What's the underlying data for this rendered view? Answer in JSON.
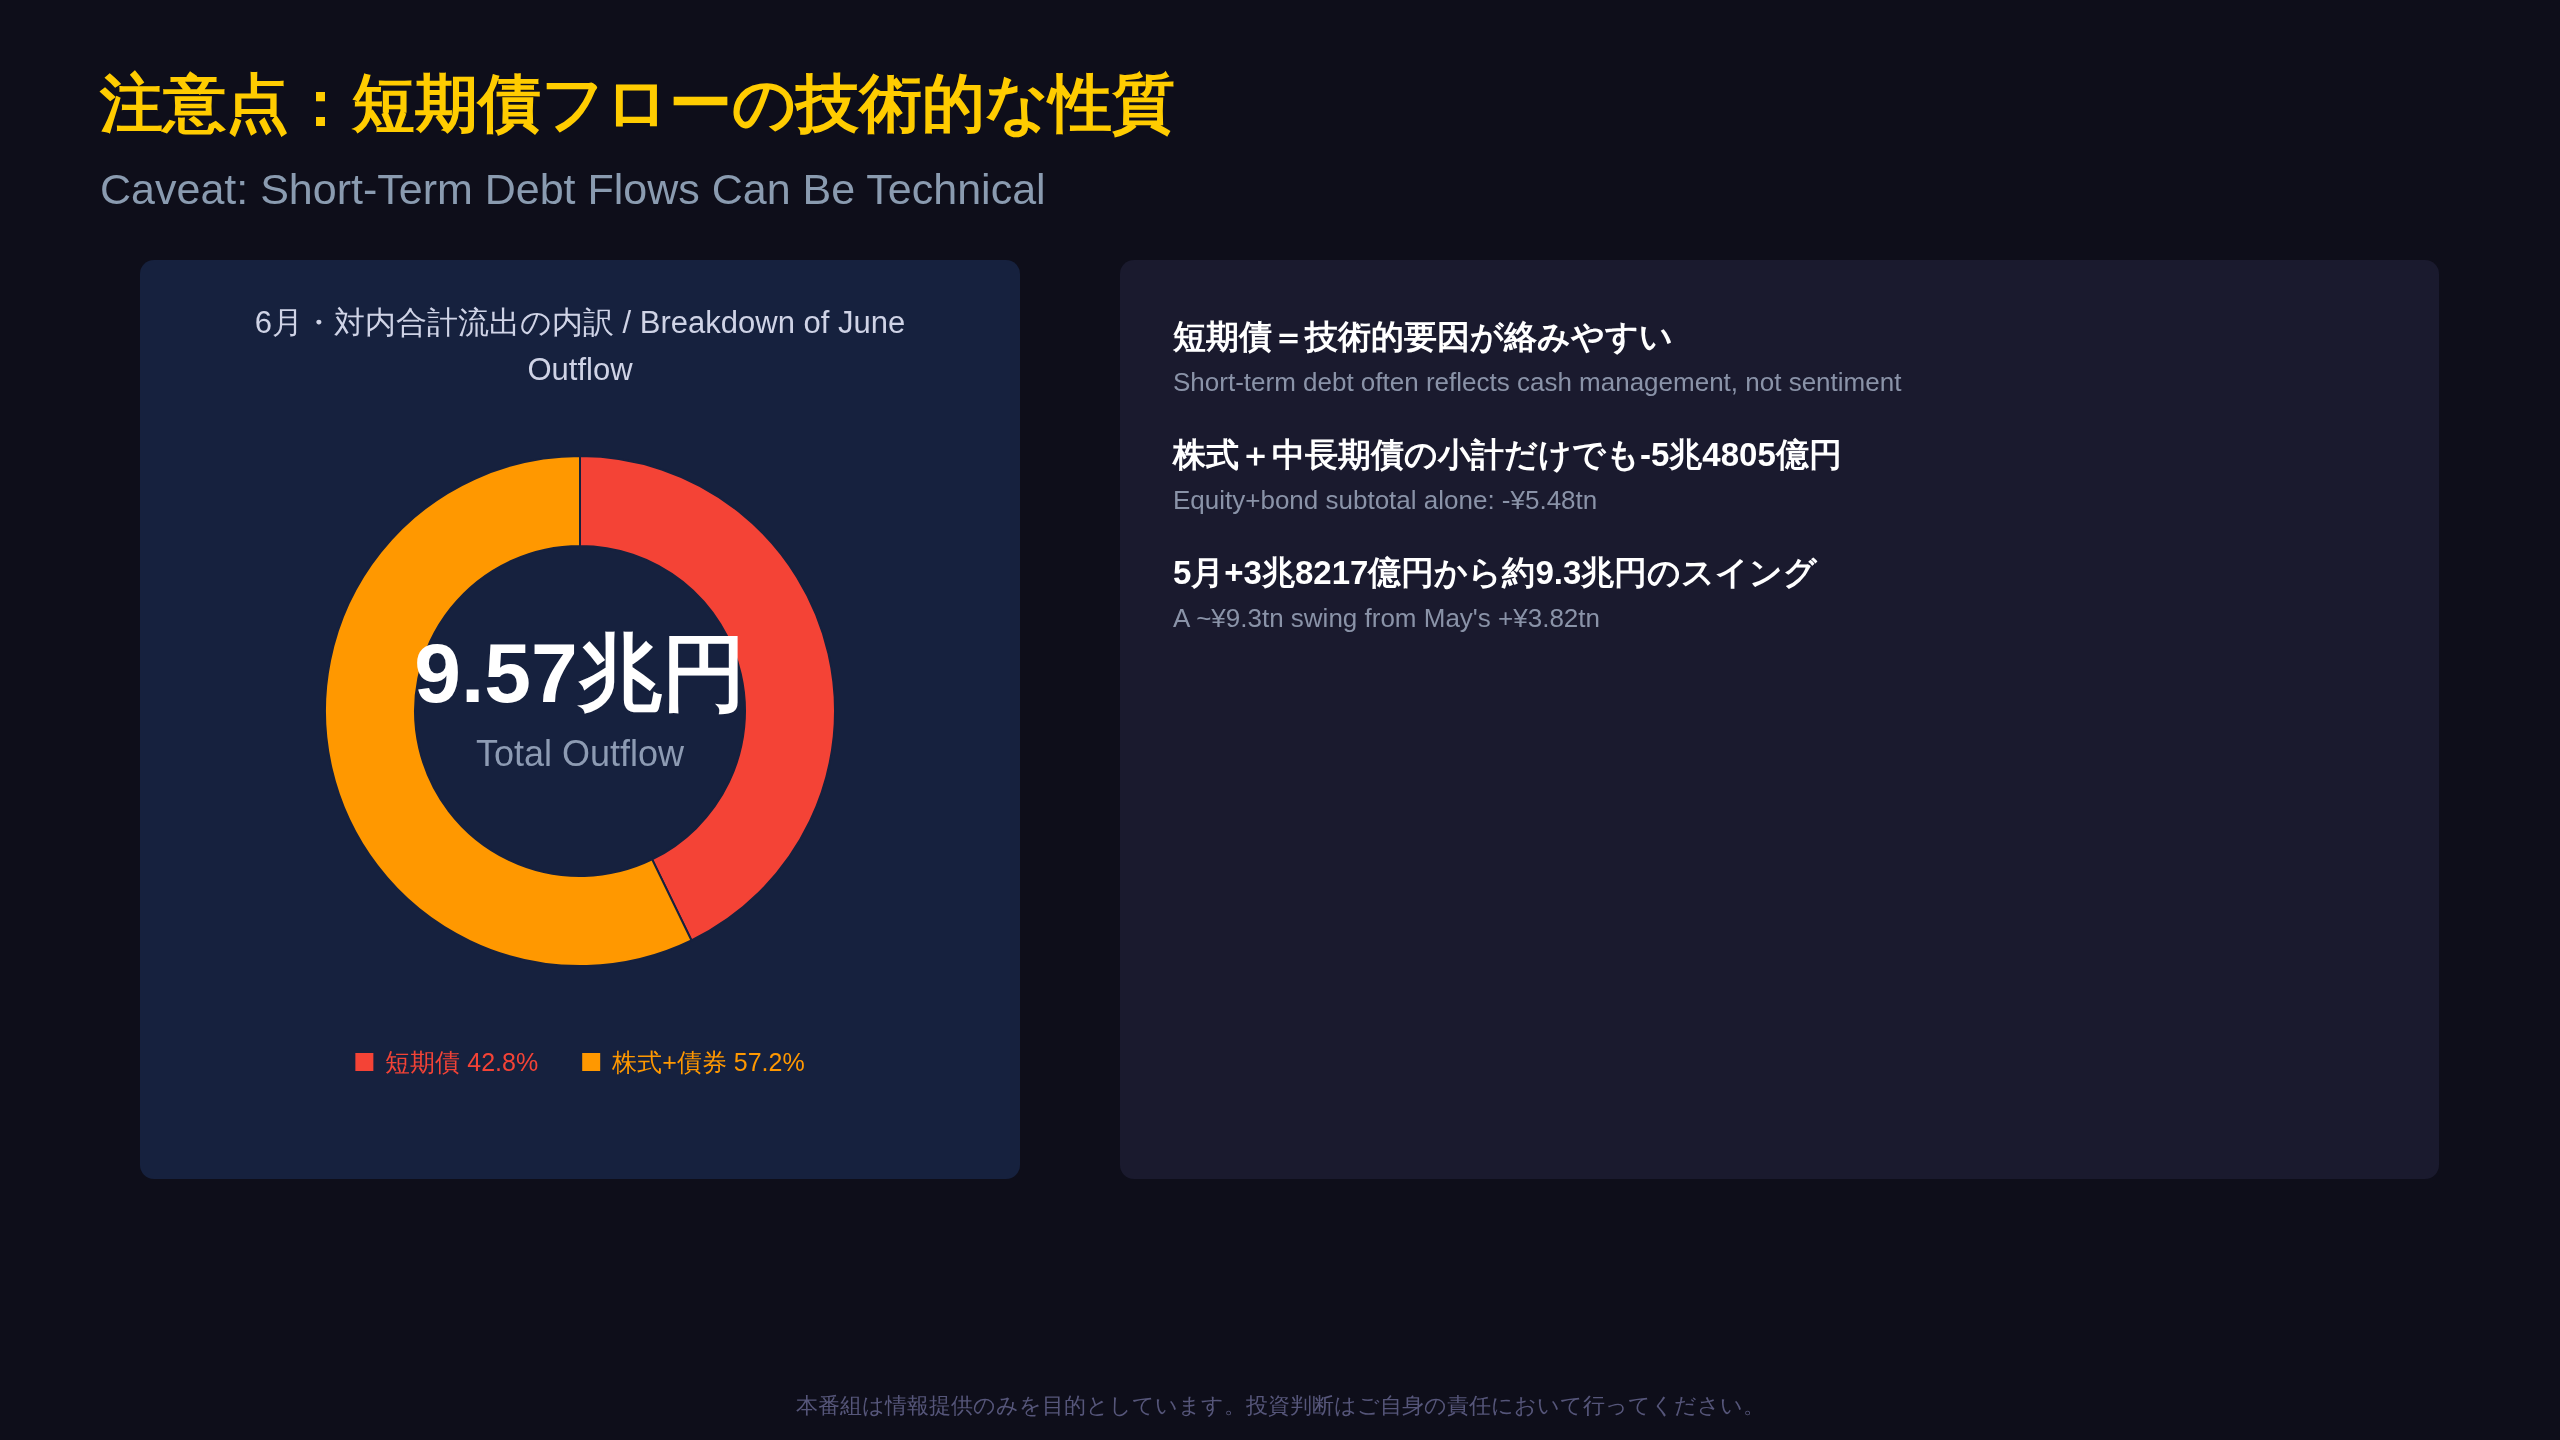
{
  "chart_data": [
    {
      "type": "other",
      "title": "注意点：短期債フローの技術的な性質",
      "subtitle": "Caveat: Short-Term Debt Flows Can Be Technical",
      "annotations": [
        "本番組は情報提供のみを目的としています。投資判断はご自身の責任において行ってください。"
      ]
    },
    {
      "type": "donut",
      "title": "6月・対内合計流出の内訳 / Breakdown of June Outflow",
      "categories": [
        "短期債",
        "株式+債券"
      ],
      "values": [
        42.8,
        57.2
      ],
      "colors": [
        "#f44336",
        "#ff9800"
      ],
      "value_labels": [
        "42.8%",
        "57.2%"
      ],
      "legend": "bottom",
      "annotations": [
        "9.57兆円",
        "Total Outflow"
      ]
    },
    {
      "type": "other",
      "annotations": [
        "短期債＝技術的要因が絡みやすい",
        "Short-term debt often reflects cash management, not sentiment",
        "株式＋中長期債の小計だけでも-5兆4805億円",
        "Equity+bond subtotal alone: -¥5.48tn",
        "5月+3兆8217億円から約9.3兆円のスイング",
        "A ~¥9.3tn swing from May's +¥3.82tn"
      ]
    }
  ]
}
